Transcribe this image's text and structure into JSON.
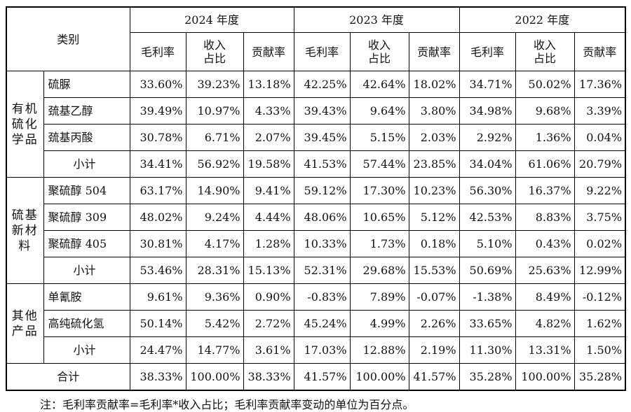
{
  "header": {
    "category": "类别",
    "years": [
      "2024 年度",
      "2023 年度",
      "2022 年度"
    ],
    "metrics": [
      "毛利率",
      "收入\n占比",
      "贡献率"
    ]
  },
  "groups": [
    {
      "name": "有机硫化学品",
      "items": [
        {
          "name": "硫脲",
          "values": [
            "33.60%",
            "39.23%",
            "13.18%",
            "42.25%",
            "42.64%",
            "18.02%",
            "34.71%",
            "50.02%",
            "17.36%"
          ]
        },
        {
          "name": "巯基乙醇",
          "values": [
            "39.49%",
            "10.97%",
            "4.33%",
            "39.43%",
            "9.64%",
            "3.80%",
            "34.98%",
            "9.68%",
            "3.39%"
          ]
        },
        {
          "name": "巯基丙酸",
          "values": [
            "30.78%",
            "6.71%",
            "2.07%",
            "39.45%",
            "5.15%",
            "2.03%",
            "2.92%",
            "1.36%",
            "0.04%"
          ]
        }
      ],
      "subtotal": {
        "name": "小计",
        "values": [
          "34.41%",
          "56.92%",
          "19.58%",
          "41.53%",
          "57.44%",
          "23.85%",
          "34.04%",
          "61.06%",
          "20.79%"
        ]
      }
    },
    {
      "name": "硫基新材料",
      "items": [
        {
          "name": "聚硫醇 504",
          "values": [
            "63.17%",
            "14.90%",
            "9.41%",
            "59.12%",
            "17.30%",
            "10.23%",
            "56.30%",
            "16.37%",
            "9.22%"
          ]
        },
        {
          "name": "聚硫醇 309",
          "values": [
            "48.02%",
            "9.24%",
            "4.44%",
            "48.06%",
            "10.65%",
            "5.12%",
            "42.53%",
            "8.83%",
            "3.75%"
          ]
        },
        {
          "name": "聚硫醇 405",
          "values": [
            "30.81%",
            "4.17%",
            "1.28%",
            "10.33%",
            "1.73%",
            "0.18%",
            "5.10%",
            "0.43%",
            "0.02%"
          ]
        }
      ],
      "subtotal": {
        "name": "小计",
        "values": [
          "53.46%",
          "28.31%",
          "15.13%",
          "52.31%",
          "29.68%",
          "15.53%",
          "50.69%",
          "25.63%",
          "12.99%"
        ]
      }
    },
    {
      "name": "其他产品",
      "items": [
        {
          "name": "单氰胺",
          "values": [
            "9.61%",
            "9.36%",
            "0.90%",
            "-0.83%",
            "7.89%",
            "-0.07%",
            "-1.38%",
            "8.49%",
            "-0.12%"
          ]
        },
        {
          "name": "高纯硫化氢",
          "values": [
            "50.14%",
            "5.42%",
            "2.72%",
            "45.24%",
            "4.99%",
            "2.26%",
            "33.65%",
            "4.82%",
            "1.62%"
          ]
        }
      ],
      "subtotal": {
        "name": "小计",
        "values": [
          "24.47%",
          "14.77%",
          "3.61%",
          "17.03%",
          "12.88%",
          "2.19%",
          "11.30%",
          "13.31%",
          "1.50%"
        ]
      }
    }
  ],
  "total": {
    "name": "合计",
    "values": [
      "38.33%",
      "100.00%",
      "38.33%",
      "41.57%",
      "100.00%",
      "41.57%",
      "35.28%",
      "100.00%",
      "35.28%"
    ]
  },
  "note": "注：毛利率贡献率=毛利率*收入占比；毛利率贡献率变动的单位为百分点。"
}
